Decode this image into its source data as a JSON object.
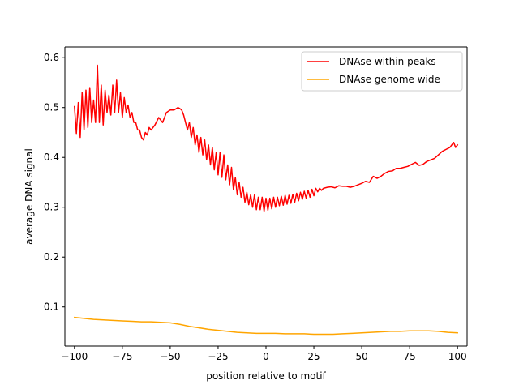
{
  "chart_data": {
    "type": "line",
    "xlabel": "position relative to motif",
    "ylabel": "average DNA signal",
    "xlim": [
      -105,
      105
    ],
    "ylim": [
      0.0215,
      0.6215
    ],
    "xticks": [
      -100,
      -75,
      -50,
      -25,
      0,
      25,
      50,
      75,
      100
    ],
    "xtick_labels": [
      "−100",
      "−75",
      "−50",
      "−25",
      "0",
      "25",
      "50",
      "75",
      "100"
    ],
    "yticks": [
      0.1,
      0.2,
      0.3,
      0.4,
      0.5,
      0.6
    ],
    "ytick_labels": [
      "0.1",
      "0.2",
      "0.3",
      "0.4",
      "0.5",
      "0.6"
    ],
    "grid": false,
    "legend_position": "top-right",
    "series": [
      {
        "name": "DNAse within peaks",
        "color": "#ff0000",
        "x": [
          -100,
          -99,
          -98,
          -97,
          -96,
          -95,
          -94,
          -93,
          -92,
          -91,
          -90,
          -89,
          -88,
          -87,
          -86,
          -85,
          -84,
          -83,
          -82,
          -81,
          -80,
          -79,
          -78,
          -77,
          -76,
          -75,
          -74,
          -73,
          -72,
          -71,
          -70,
          -69,
          -68,
          -67,
          -66,
          -65,
          -64,
          -63,
          -62,
          -61,
          -60,
          -58,
          -56,
          -54,
          -52,
          -50,
          -48,
          -46,
          -45,
          -44,
          -43,
          -42,
          -41,
          -40,
          -39,
          -38,
          -37,
          -36,
          -35,
          -34,
          -33,
          -32,
          -31,
          -30,
          -29,
          -28,
          -27,
          -26,
          -25,
          -24,
          -23,
          -22,
          -21,
          -20,
          -19,
          -18,
          -17,
          -16,
          -15,
          -14,
          -13,
          -12,
          -11,
          -10,
          -9,
          -8,
          -7,
          -6,
          -5,
          -4,
          -3,
          -2,
          -1,
          0,
          1,
          2,
          3,
          4,
          5,
          6,
          7,
          8,
          9,
          10,
          11,
          12,
          13,
          14,
          15,
          16,
          17,
          18,
          19,
          20,
          21,
          22,
          23,
          24,
          25,
          26,
          27,
          28,
          29,
          30,
          32,
          34,
          36,
          38,
          40,
          42,
          44,
          46,
          48,
          50,
          52,
          54,
          56,
          58,
          60,
          62,
          64,
          66,
          68,
          70,
          72,
          74,
          76,
          78,
          80,
          82,
          84,
          86,
          88,
          90,
          92,
          94,
          96,
          97,
          98,
          99,
          100
        ],
        "y": [
          0.502,
          0.448,
          0.51,
          0.44,
          0.53,
          0.455,
          0.535,
          0.46,
          0.54,
          0.47,
          0.515,
          0.47,
          0.585,
          0.47,
          0.545,
          0.465,
          0.535,
          0.49,
          0.525,
          0.485,
          0.545,
          0.49,
          0.555,
          0.49,
          0.53,
          0.48,
          0.52,
          0.49,
          0.505,
          0.48,
          0.49,
          0.47,
          0.47,
          0.455,
          0.455,
          0.44,
          0.435,
          0.45,
          0.445,
          0.46,
          0.455,
          0.465,
          0.48,
          0.47,
          0.49,
          0.495,
          0.495,
          0.5,
          0.498,
          0.495,
          0.485,
          0.47,
          0.455,
          0.47,
          0.44,
          0.46,
          0.425,
          0.445,
          0.41,
          0.44,
          0.405,
          0.435,
          0.395,
          0.425,
          0.385,
          0.42,
          0.375,
          0.41,
          0.365,
          0.41,
          0.36,
          0.405,
          0.355,
          0.385,
          0.345,
          0.38,
          0.335,
          0.36,
          0.325,
          0.35,
          0.32,
          0.34,
          0.31,
          0.33,
          0.305,
          0.325,
          0.3,
          0.325,
          0.295,
          0.32,
          0.295,
          0.32,
          0.292,
          0.318,
          0.294,
          0.318,
          0.297,
          0.32,
          0.3,
          0.32,
          0.303,
          0.322,
          0.304,
          0.324,
          0.306,
          0.324,
          0.308,
          0.326,
          0.31,
          0.328,
          0.313,
          0.33,
          0.316,
          0.332,
          0.318,
          0.334,
          0.32,
          0.336,
          0.323,
          0.338,
          0.331,
          0.338,
          0.334,
          0.338,
          0.34,
          0.341,
          0.339,
          0.343,
          0.342,
          0.342,
          0.34,
          0.342,
          0.345,
          0.348,
          0.352,
          0.35,
          0.362,
          0.358,
          0.362,
          0.368,
          0.372,
          0.373,
          0.378,
          0.378,
          0.38,
          0.382,
          0.386,
          0.39,
          0.384,
          0.386,
          0.392,
          0.395,
          0.398,
          0.405,
          0.412,
          0.416,
          0.42,
          0.425,
          0.43,
          0.42,
          0.425
        ]
      },
      {
        "name": "DNAse genome wide",
        "color": "#ffa500",
        "x": [
          -100,
          -95,
          -90,
          -85,
          -80,
          -75,
          -70,
          -65,
          -60,
          -55,
          -50,
          -45,
          -40,
          -35,
          -30,
          -25,
          -20,
          -15,
          -10,
          -5,
          0,
          5,
          10,
          15,
          20,
          25,
          30,
          35,
          40,
          45,
          50,
          55,
          60,
          65,
          70,
          75,
          80,
          85,
          90,
          95,
          100
        ],
        "y": [
          0.079,
          0.077,
          0.075,
          0.074,
          0.073,
          0.072,
          0.071,
          0.07,
          0.07,
          0.069,
          0.068,
          0.065,
          0.061,
          0.058,
          0.055,
          0.053,
          0.051,
          0.049,
          0.048,
          0.047,
          0.047,
          0.047,
          0.046,
          0.046,
          0.046,
          0.045,
          0.045,
          0.045,
          0.046,
          0.047,
          0.048,
          0.049,
          0.05,
          0.051,
          0.051,
          0.052,
          0.052,
          0.052,
          0.051,
          0.049,
          0.048
        ]
      }
    ]
  }
}
